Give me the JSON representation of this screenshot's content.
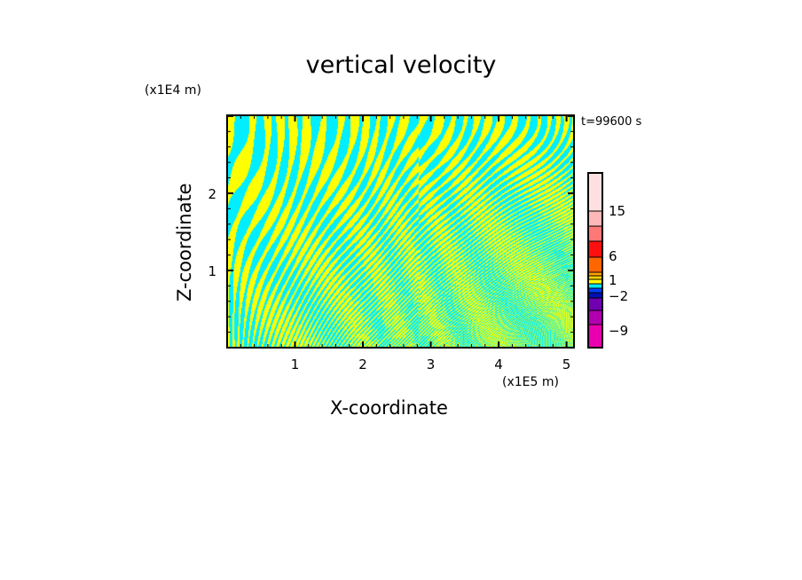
{
  "chart_data": {
    "type": "heatmap",
    "title": "vertical velocity",
    "xlabel": "X-coordinate",
    "ylabel": "Z-coordinate",
    "x_unit": "(x1E5 m)",
    "y_unit": "(x1E4 m)",
    "time_label": "t=99600 s",
    "xlim": [
      0,
      5.11
    ],
    "ylim": [
      0,
      3.01
    ],
    "x_ticks": [
      1,
      2,
      3,
      4,
      5
    ],
    "x_tick_labels": [
      "1",
      "2",
      "3",
      "4",
      "5"
    ],
    "y_ticks": [
      1,
      2
    ],
    "y_tick_labels": [
      "1",
      "2"
    ],
    "field_colors": {
      "positive": "#ffff00",
      "negative": "#00eeff"
    },
    "colorbar": {
      "segments": [
        "#ffe0e0",
        "#ffb8b8",
        "#ff7878",
        "#ff1010",
        "#ff6600",
        "#ffa000",
        "#ffd000",
        "#ffff00",
        "#00e8ff",
        "#0040ff",
        "#0010b0",
        "#7000b0",
        "#b000b0",
        "#e800b0"
      ],
      "labels": [
        "15",
        "6",
        "1",
        "-2",
        "-9"
      ]
    }
  }
}
